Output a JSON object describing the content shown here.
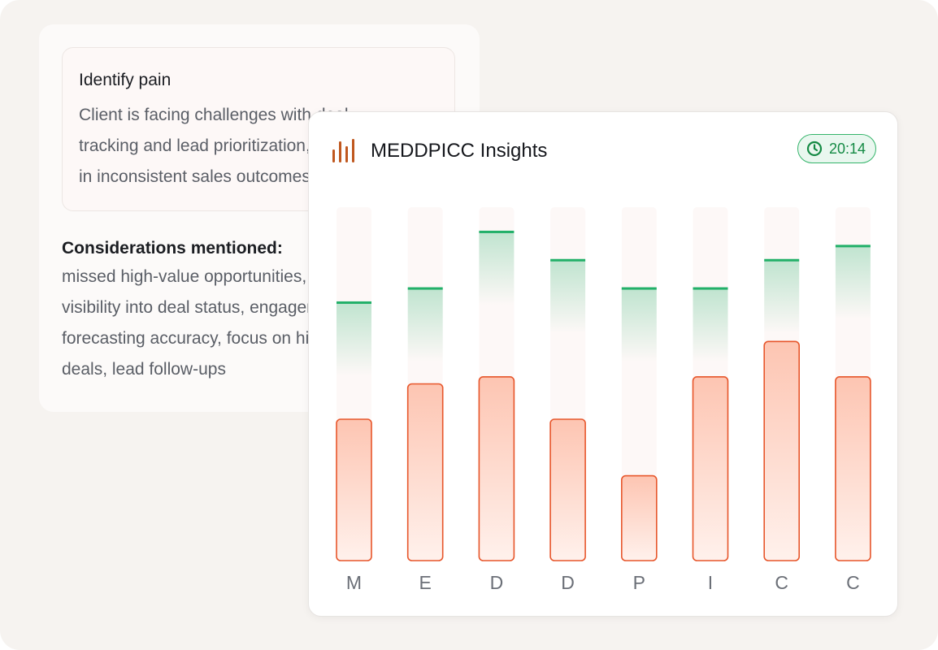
{
  "pain_card": {
    "title": "Identify pain",
    "text": "Client is facing challenges with deal\ntracking and lead prioritization, resulting\nin inconsistent sales outcomes."
  },
  "considerations": {
    "title": "Considerations mentioned:",
    "text": "missed high-value opportunities, poor\nvisibility into deal status, engagement,\nforecasting accuracy, focus on high-value\ndeals, lead follow-ups"
  },
  "insights": {
    "title": "MEDDPICC Insights",
    "icon": "bar-chart-icon",
    "timer": "20:14",
    "timer_icon": "clock-icon"
  },
  "colors": {
    "accent_orange": "#e7562b",
    "target_green": "#22b069",
    "timer_green": "#148a44",
    "icon_brown": "#c0581f"
  },
  "chart_data": {
    "type": "bar",
    "categories": [
      "M",
      "E",
      "D",
      "D",
      "P",
      "I",
      "C",
      "C"
    ],
    "series": [
      {
        "values": [
          0.4,
          0.5,
          0.52,
          0.4,
          0.24,
          0.52,
          0.62,
          0.52
        ]
      },
      {
        "values": [
          0.73,
          0.77,
          0.93,
          0.85,
          0.77,
          0.77,
          0.85,
          0.89
        ]
      }
    ],
    "ylim": [
      0,
      1
    ],
    "grid": false,
    "legend": "none"
  }
}
